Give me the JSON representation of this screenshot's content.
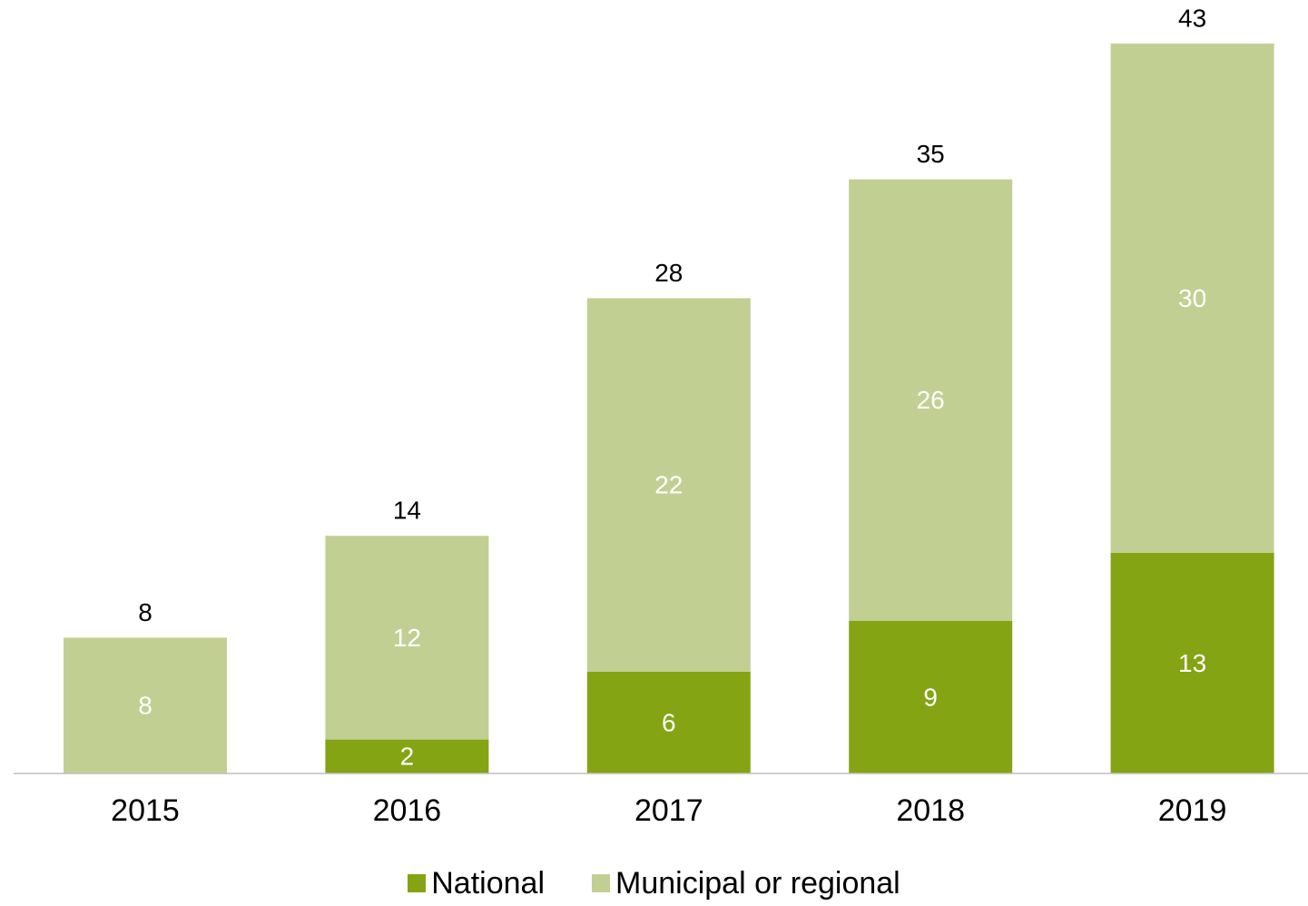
{
  "chart_data": {
    "type": "bar",
    "stacked": true,
    "categories": [
      "2015",
      "2016",
      "2017",
      "2018",
      "2019"
    ],
    "series": [
      {
        "name": "National",
        "values": [
          0,
          2,
          6,
          9,
          13
        ],
        "color": "#84a414"
      },
      {
        "name": "Municipal or regional",
        "values": [
          8,
          12,
          22,
          26,
          30
        ],
        "color": "#c2cf93"
      }
    ],
    "totals": [
      8,
      14,
      28,
      35,
      43
    ],
    "ylim": [
      0,
      43
    ],
    "grid": false,
    "legend_position": "bottom",
    "segment_label_color": "#ffffff",
    "total_label_color": "#000000",
    "axis_color": "#bfbfbf"
  }
}
